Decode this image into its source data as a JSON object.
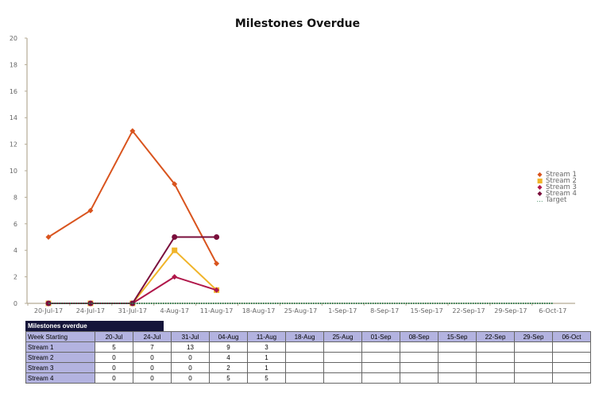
{
  "chart_data": {
    "type": "line",
    "title": "Milestones Overdue",
    "xlabel": "",
    "ylabel": "",
    "ylim": [
      0,
      20
    ],
    "yticks": [
      0,
      2,
      4,
      6,
      8,
      10,
      12,
      14,
      16,
      18,
      20
    ],
    "categories": [
      "20-Jul-17",
      "24-Jul-17",
      "31-Jul-17",
      "4-Aug-17",
      "11-Aug-17",
      "18-Aug-17",
      "25-Aug-17",
      "1-Sep-17",
      "8-Sep-17",
      "15-Sep-17",
      "22-Sep-17",
      "29-Sep-17",
      "6-Oct-17"
    ],
    "legend_position": "right",
    "grid": false,
    "series": [
      {
        "name": "Stream 1",
        "color": "#d9541e",
        "marker": "diamond",
        "values": [
          5,
          7,
          13,
          9,
          3
        ]
      },
      {
        "name": "Stream 2",
        "color": "#f0b429",
        "marker": "square",
        "values": [
          0,
          0,
          0,
          4,
          1
        ]
      },
      {
        "name": "Stream 3",
        "color": "#b0174a",
        "marker": "diamond",
        "values": [
          0,
          0,
          0,
          2,
          1
        ]
      },
      {
        "name": "Stream 4",
        "color": "#7a0f3c",
        "marker": "circle",
        "values": [
          0,
          0,
          0,
          5,
          5
        ]
      },
      {
        "name": "Target",
        "color": "#2e7d4f",
        "marker": "none",
        "dashed": true,
        "values": [
          0,
          0,
          0,
          0,
          0,
          0,
          0,
          0,
          0,
          0,
          0,
          0,
          0
        ]
      }
    ]
  },
  "table": {
    "caption": "Milestones overdue",
    "header_label": "Week Starting",
    "columns": [
      "20-Jul",
      "24-Jul",
      "31-Jul",
      "04-Aug",
      "11-Aug",
      "18-Aug",
      "25-Aug",
      "01-Sep",
      "08-Sep",
      "15-Sep",
      "22-Sep",
      "29-Sep",
      "06-Oct"
    ],
    "rows": [
      {
        "label": "Stream 1",
        "values": [
          "5",
          "7",
          "13",
          "9",
          "3",
          "",
          "",
          "",
          "",
          "",
          "",
          "",
          ""
        ]
      },
      {
        "label": "Stream 2",
        "values": [
          "0",
          "0",
          "0",
          "4",
          "1",
          "",
          "",
          "",
          "",
          "",
          "",
          "",
          ""
        ]
      },
      {
        "label": "Stream 3",
        "values": [
          "0",
          "0",
          "0",
          "2",
          "1",
          "",
          "",
          "",
          "",
          "",
          "",
          "",
          ""
        ]
      },
      {
        "label": "Stream 4",
        "values": [
          "0",
          "0",
          "0",
          "5",
          "5",
          "",
          "",
          "",
          "",
          "",
          "",
          "",
          ""
        ]
      }
    ]
  }
}
